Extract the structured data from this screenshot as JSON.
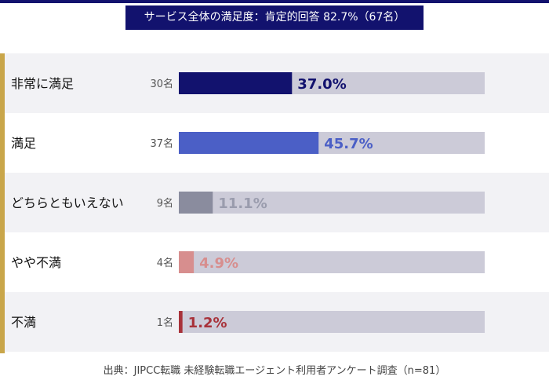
{
  "title": "サービス全体の満足度：肯定的回答 82.7%（67名）",
  "source": "出典：JIPCC転職 未経験転職エージェント利用者アンケート調査（n=81）",
  "chart_data": {
    "type": "bar",
    "orientation": "horizontal",
    "categories": [
      "非常に満足",
      "満足",
      "どちらともいえない",
      "やや不満",
      "不満"
    ],
    "counts": [
      "30名",
      "37名",
      "9名",
      "4名",
      "1名"
    ],
    "values": [
      37.0,
      45.7,
      11.1,
      4.9,
      1.2
    ],
    "value_labels": [
      "37.0%",
      "45.7%",
      "11.1%",
      "4.9%",
      "1.2%"
    ],
    "xlim": [
      0,
      100
    ],
    "colors": [
      "#12126e",
      "#4b5fc6",
      "#8a8c9e",
      "#d78e8e",
      "#a8323a"
    ],
    "label_colors": [
      "#12126e",
      "#4b5fc6",
      "#9a9cad",
      "#d78e8e",
      "#a8323a"
    ],
    "track_color": "#cccbd8",
    "row_background": "#f2f2f5",
    "grid": false,
    "legend": "none"
  }
}
